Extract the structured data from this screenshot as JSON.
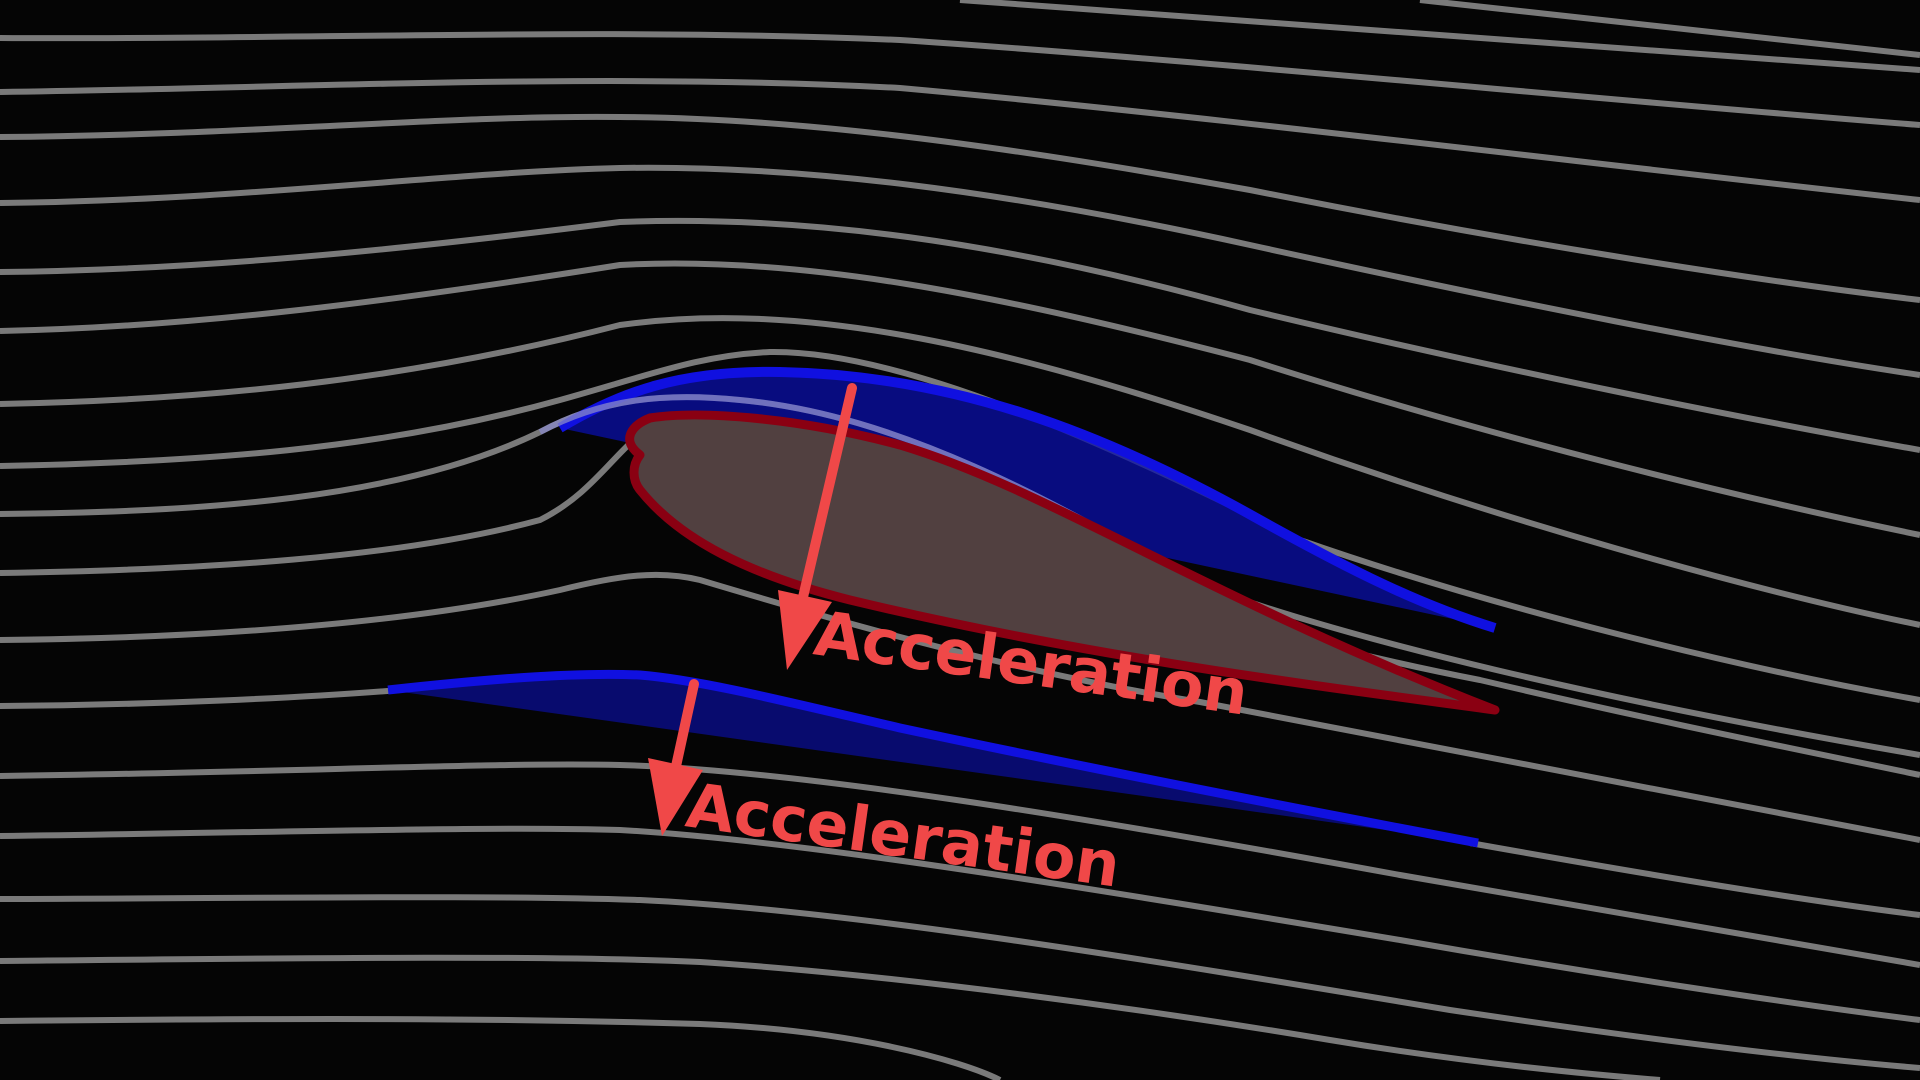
{
  "colors": {
    "background": "#050505",
    "streamline": "#7a7a7a",
    "accent_arrow": "#f04848",
    "flow_region_fill": "#0a0fa8",
    "flow_region_edge": "#1010e0",
    "airfoil_fill": "#514040",
    "airfoil_edge": "#8a0012"
  },
  "labels": {
    "upper": "Acceleration",
    "lower": "Acceleration"
  }
}
